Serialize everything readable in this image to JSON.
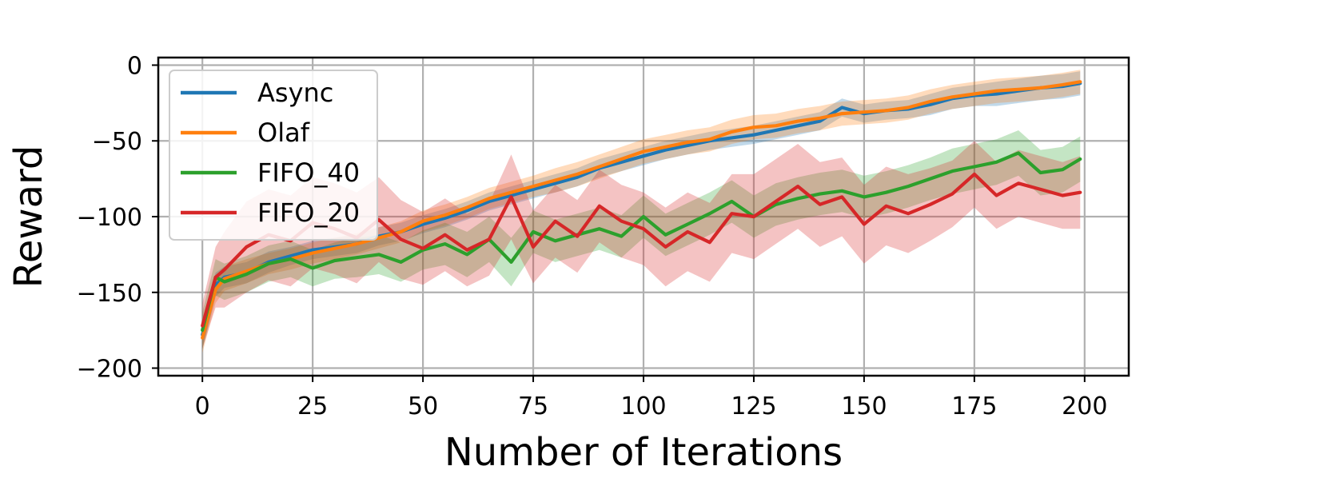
{
  "chart_data": {
    "type": "line",
    "xlabel": "Number of Iterations",
    "ylabel": "Reward",
    "xlim": [
      -10,
      210
    ],
    "ylim": [
      -205,
      5
    ],
    "xticks": [
      0,
      25,
      50,
      75,
      100,
      125,
      150,
      175,
      200
    ],
    "yticks": [
      0,
      -50,
      -100,
      -150,
      -200
    ],
    "grid": true,
    "legend_position": "upper-left",
    "series": [
      {
        "name": "Async",
        "color": "#1f77b4",
        "band_color": "#1f77b4",
        "x": [
          0,
          3,
          5,
          10,
          15,
          20,
          25,
          30,
          35,
          40,
          45,
          50,
          55,
          60,
          65,
          70,
          75,
          80,
          85,
          90,
          95,
          100,
          105,
          110,
          115,
          120,
          125,
          130,
          135,
          140,
          145,
          150,
          155,
          160,
          165,
          170,
          175,
          180,
          185,
          190,
          195,
          199
        ],
        "values": [
          -178,
          -145,
          -140,
          -137,
          -130,
          -126,
          -122,
          -120,
          -118,
          -113,
          -110,
          -105,
          -101,
          -96,
          -90,
          -86,
          -82,
          -78,
          -74,
          -68,
          -64,
          -60,
          -56,
          -53,
          -50,
          -48,
          -46,
          -43,
          -40,
          -37,
          -28,
          -32,
          -30,
          -29,
          -26,
          -22,
          -20,
          -19,
          -17,
          -15,
          -14,
          -12
        ],
        "band_width": [
          10,
          8,
          7,
          7,
          7,
          6,
          6,
          6,
          6,
          6,
          6,
          6,
          6,
          6,
          6,
          6,
          6,
          6,
          6,
          6,
          6,
          6,
          6,
          6,
          6,
          6,
          6,
          6,
          6,
          6,
          6,
          6,
          6,
          6,
          7,
          7,
          7,
          8,
          8,
          8,
          8,
          8
        ]
      },
      {
        "name": "Olaf",
        "color": "#ff7f0e",
        "band_color": "#ff7f0e",
        "x": [
          0,
          3,
          5,
          10,
          15,
          20,
          25,
          30,
          35,
          40,
          45,
          50,
          55,
          60,
          65,
          70,
          75,
          80,
          85,
          90,
          95,
          100,
          105,
          110,
          115,
          120,
          125,
          130,
          135,
          140,
          145,
          150,
          155,
          160,
          165,
          170,
          175,
          180,
          185,
          190,
          195,
          199
        ],
        "values": [
          -180,
          -148,
          -141,
          -136,
          -131,
          -128,
          -124,
          -121,
          -118,
          -114,
          -110,
          -103,
          -99,
          -94,
          -88,
          -84,
          -80,
          -76,
          -72,
          -67,
          -62,
          -57,
          -54,
          -51,
          -49,
          -44,
          -41,
          -40,
          -37,
          -35,
          -32,
          -31,
          -30,
          -28,
          -24,
          -21,
          -19,
          -17,
          -16,
          -15,
          -13,
          -11
        ],
        "band_width": [
          10,
          9,
          8,
          8,
          7,
          7,
          7,
          7,
          7,
          7,
          7,
          7,
          7,
          7,
          7,
          7,
          7,
          8,
          8,
          8,
          8,
          8,
          8,
          8,
          8,
          8,
          8,
          8,
          8,
          8,
          8,
          8,
          8,
          8,
          8,
          8,
          8,
          8,
          8,
          8,
          8,
          8
        ]
      },
      {
        "name": "FIFO_40",
        "color": "#2ca02c",
        "band_color": "#2ca02c",
        "x": [
          0,
          3,
          5,
          10,
          15,
          20,
          25,
          30,
          35,
          40,
          45,
          50,
          55,
          60,
          65,
          70,
          75,
          80,
          85,
          90,
          95,
          100,
          105,
          110,
          115,
          120,
          125,
          130,
          135,
          140,
          145,
          150,
          155,
          160,
          165,
          170,
          175,
          180,
          185,
          190,
          195,
          199
        ],
        "values": [
          -175,
          -140,
          -143,
          -138,
          -131,
          -128,
          -134,
          -129,
          -127,
          -125,
          -130,
          -122,
          -118,
          -125,
          -115,
          -130,
          -110,
          -116,
          -112,
          -108,
          -113,
          -100,
          -112,
          -105,
          -98,
          -90,
          -100,
          -92,
          -88,
          -85,
          -83,
          -87,
          -84,
          -80,
          -75,
          -70,
          -67,
          -64,
          -58,
          -71,
          -69,
          -62
        ],
        "band_width": [
          12,
          12,
          12,
          12,
          12,
          12,
          12,
          12,
          13,
          13,
          13,
          13,
          14,
          15,
          15,
          16,
          14,
          14,
          14,
          14,
          14,
          14,
          14,
          14,
          14,
          14,
          14,
          14,
          14,
          14,
          14,
          14,
          14,
          14,
          14,
          15,
          15,
          15,
          15,
          15,
          15,
          15
        ]
      },
      {
        "name": "FIFO_20",
        "color": "#d62728",
        "band_color": "#d62728",
        "x": [
          0,
          3,
          5,
          10,
          15,
          20,
          25,
          30,
          35,
          40,
          45,
          50,
          55,
          60,
          65,
          70,
          75,
          80,
          85,
          90,
          95,
          100,
          105,
          110,
          115,
          120,
          125,
          130,
          135,
          140,
          145,
          150,
          155,
          160,
          165,
          170,
          175,
          180,
          185,
          190,
          195,
          199
        ],
        "values": [
          -172,
          -140,
          -135,
          -120,
          -112,
          -116,
          -104,
          -108,
          -114,
          -102,
          -115,
          -121,
          -112,
          -122,
          -115,
          -87,
          -120,
          -103,
          -113,
          -93,
          -103,
          -108,
          -120,
          -110,
          -117,
          -98,
          -100,
          -90,
          -80,
          -92,
          -87,
          -105,
          -93,
          -98,
          -92,
          -85,
          -72,
          -86,
          -78,
          -82,
          -86,
          -84
        ],
        "band_width": [
          15,
          20,
          25,
          30,
          30,
          30,
          30,
          30,
          30,
          28,
          26,
          24,
          24,
          24,
          24,
          28,
          24,
          24,
          24,
          24,
          24,
          24,
          26,
          26,
          26,
          26,
          28,
          28,
          28,
          28,
          26,
          26,
          26,
          26,
          24,
          22,
          22,
          22,
          22,
          22,
          22,
          24
        ]
      }
    ]
  }
}
